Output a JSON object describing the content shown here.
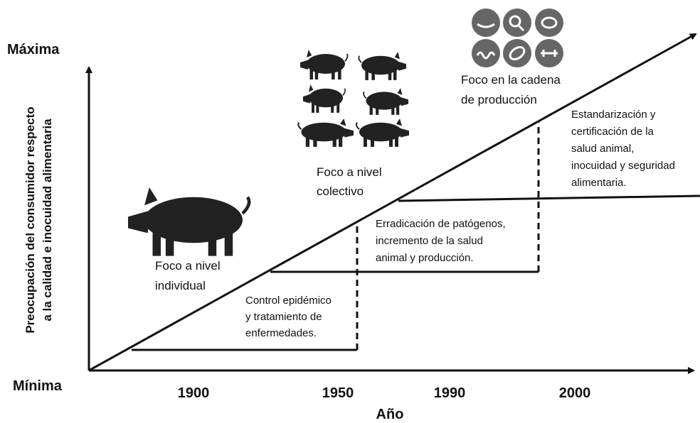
{
  "axis": {
    "y_max": "Máxima",
    "y_min": "Mínima",
    "y_label": [
      "Preocupación del consumidor respecto",
      "a la calidad e inocuidad alimentaria"
    ],
    "x_labels": [
      "1900",
      "1950",
      "1990",
      "2000"
    ],
    "x_title": "Año"
  },
  "focus": [
    {
      "lines": [
        "Foco a nivel",
        "individual"
      ]
    },
    {
      "lines": [
        "Foco a nivel",
        "colectivo"
      ]
    },
    {
      "lines": [
        "Foco en la cadena",
        "de producción"
      ]
    }
  ],
  "stages": [
    {
      "lines": [
        "Control epidémico",
        "y tratamiento de",
        "enfermedades."
      ]
    },
    {
      "lines": [
        "Erradicación de patógenos,",
        "incremento de la salud",
        "animal y producción."
      ]
    },
    {
      "lines": [
        "Estandarización y",
        "certificación de la",
        "salud animal,",
        "inocuidad y seguridad",
        "alimentaria."
      ]
    }
  ]
}
